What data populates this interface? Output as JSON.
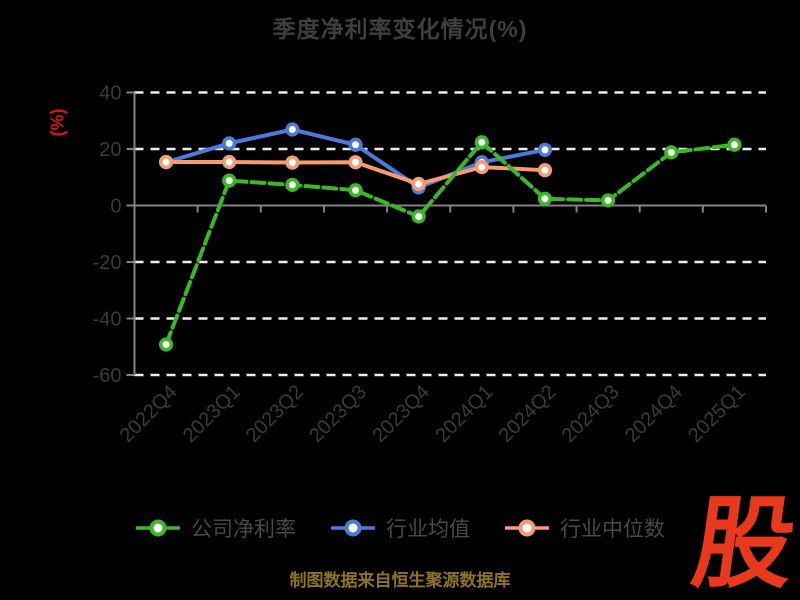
{
  "chart_data": {
    "type": "line",
    "title": "季度净利率变化情况(%)",
    "ylabel": "(%)",
    "xlabel": "",
    "categories": [
      "2022Q4",
      "2023Q1",
      "2023Q2",
      "2023Q3",
      "2023Q4",
      "2024Q1",
      "2024Q2",
      "2024Q3",
      "2024Q4",
      "2025Q1"
    ],
    "yticks": [
      40,
      20,
      0,
      -20,
      -40,
      -60
    ],
    "ylim": [
      -60,
      40
    ],
    "grid": "horizontal-dashed-white",
    "legend_position": "bottom",
    "series": [
      {
        "name": "公司净利率",
        "color": "#3ab825",
        "line_style": "dashed",
        "values": [
          -49.2,
          8.8,
          7.3,
          5.4,
          -3.9,
          22.4,
          2.4,
          1.8,
          18.8,
          21.5
        ]
      },
      {
        "name": "行业均值",
        "color": "#4a7bdb",
        "line_style": "solid",
        "values": [
          15.3,
          22.0,
          26.9,
          21.5,
          6.4,
          15.3,
          19.7,
          null,
          null,
          null
        ]
      },
      {
        "name": "行业中位数",
        "color": "#f79b70",
        "line_style": "solid",
        "values": [
          15.4,
          15.4,
          15.2,
          15.3,
          7.6,
          13.6,
          12.5,
          null,
          null,
          null
        ]
      }
    ]
  },
  "footer": {
    "source_text": "制图数据来自恒生聚源数据库",
    "logo_text": "股"
  },
  "colors": {
    "background": "#000000",
    "title": "#3e3e3e",
    "axis_tick_label": "#3a3a3a",
    "legend_text": "#484848",
    "grid_line": "#ececec",
    "axis_line": "#828282",
    "ylabel_red": "#d81414",
    "source_gold": "#8e741f",
    "logo_red": "#e8391d",
    "marker_fill": "#ffffff"
  }
}
